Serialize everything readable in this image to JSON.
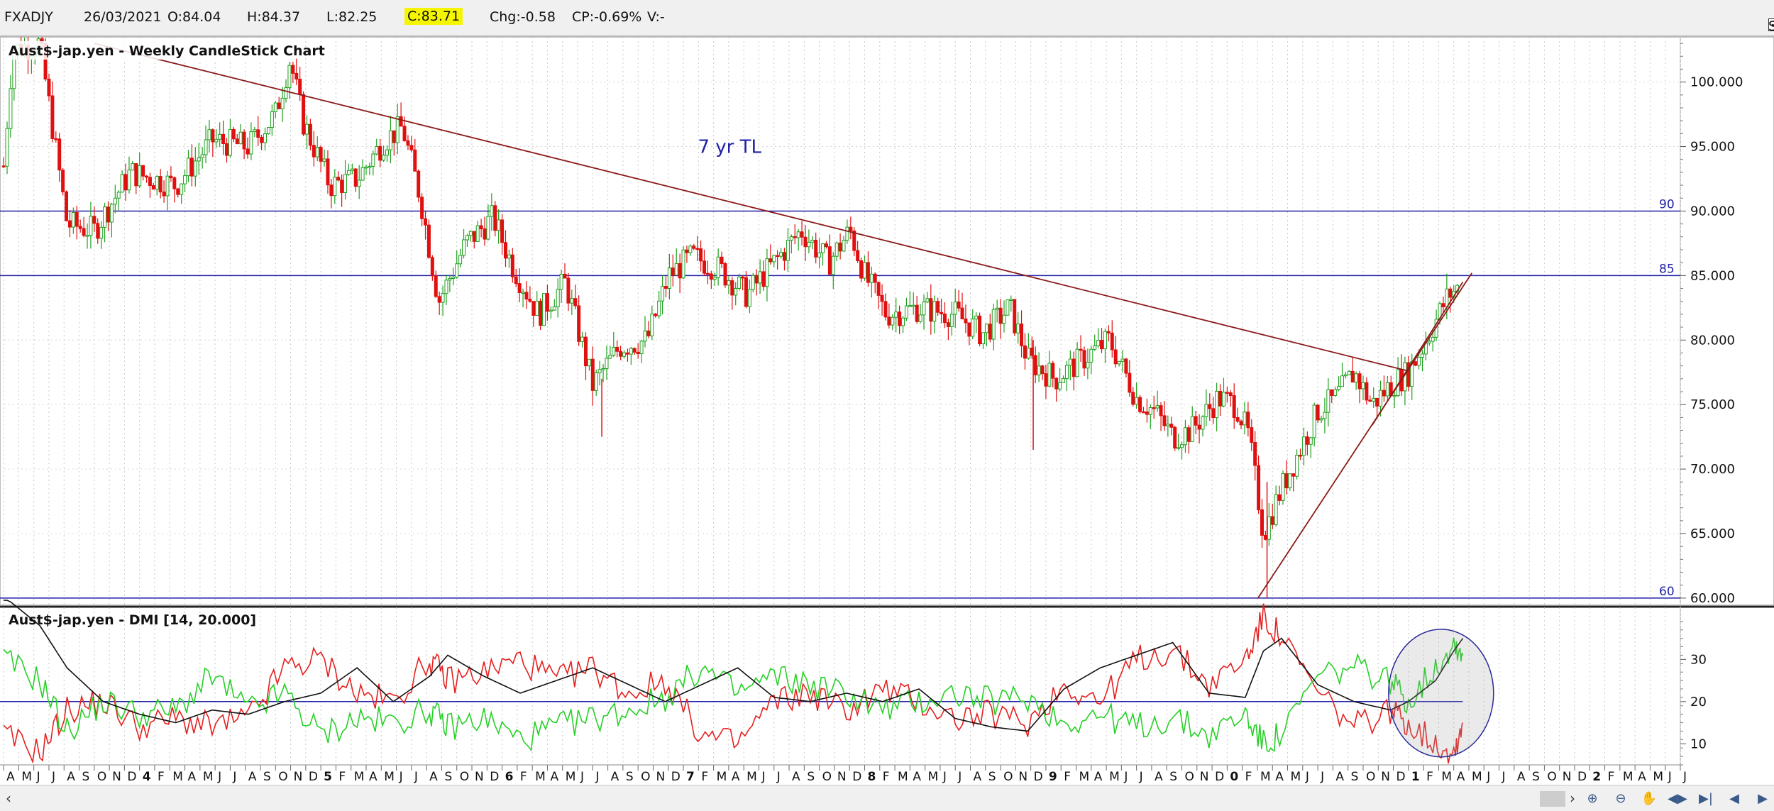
{
  "header": {
    "symbol": "FXADJY",
    "date": "26/03/2021",
    "open": "O:84.04",
    "high": "H:84.37",
    "low": "L:82.25",
    "close": "C:83.71",
    "change": "Chg:-0.58",
    "change_pct": "CP:-0.69%",
    "volume": "V:-",
    "show_last_label": "Show Last",
    "show_last_checked": true
  },
  "chart_data": [
    {
      "type": "candlestick",
      "title": "Aust$-jap.yen - Weekly CandleStick Chart",
      "ylim": [
        59.5,
        103.5
      ],
      "y_ticks": [
        "100.000",
        "95.000",
        "90.000",
        "85.000",
        "80.000",
        "75.000",
        "70.000",
        "65.000",
        "60.000"
      ],
      "horizontal_lines": [
        {
          "value": 90,
          "label": "90"
        },
        {
          "value": 85,
          "label": "85"
        },
        {
          "value": 60,
          "label": "60"
        }
      ],
      "annotation": "7 yr TL",
      "trend_lines": [
        {
          "from": [
            2013.75,
            103.0
          ],
          "to": [
            2021.0,
            77.6
          ]
        },
        {
          "from": [
            2020.17,
            60.0
          ],
          "to": [
            2021.35,
            85.2
          ]
        },
        {
          "from": [
            2020.8,
            73.4
          ],
          "to": [
            2021.3,
            84.5
          ]
        }
      ],
      "key_points": [
        [
          2013.25,
          93.5
        ],
        [
          2013.3,
          102.5
        ],
        [
          2013.45,
          103.0
        ],
        [
          2013.6,
          89.0
        ],
        [
          2013.75,
          88.5
        ],
        [
          2013.95,
          93.0
        ],
        [
          2014.2,
          92.0
        ],
        [
          2014.4,
          95.5
        ],
        [
          2014.6,
          95.0
        ],
        [
          2014.75,
          97.5
        ],
        [
          2014.83,
          101.8
        ],
        [
          2014.9,
          97.0
        ],
        [
          2015.05,
          92.0
        ],
        [
          2015.2,
          92.5
        ],
        [
          2015.35,
          95.5
        ],
        [
          2015.45,
          96.5
        ],
        [
          2015.55,
          91.0
        ],
        [
          2015.65,
          83.0
        ],
        [
          2015.8,
          87.5
        ],
        [
          2015.95,
          89.5
        ],
        [
          2016.05,
          86.0
        ],
        [
          2016.2,
          82.0
        ],
        [
          2016.35,
          84.5
        ],
        [
          2016.5,
          76.5
        ],
        [
          2016.65,
          79.5
        ],
        [
          2016.8,
          80.0
        ],
        [
          2016.92,
          85.0
        ],
        [
          2017.05,
          86.5
        ],
        [
          2017.2,
          85.5
        ],
        [
          2017.35,
          83.5
        ],
        [
          2017.5,
          86.0
        ],
        [
          2017.65,
          88.5
        ],
        [
          2017.8,
          86.0
        ],
        [
          2017.92,
          88.5
        ],
        [
          2018.0,
          85.0
        ],
        [
          2018.12,
          82.0
        ],
        [
          2018.3,
          82.5
        ],
        [
          2018.5,
          82.0
        ],
        [
          2018.65,
          80.5
        ],
        [
          2018.8,
          82.5
        ],
        [
          2018.9,
          78.5
        ],
        [
          2019.05,
          77.0
        ],
        [
          2019.2,
          78.5
        ],
        [
          2019.35,
          80.0
        ],
        [
          2019.5,
          75.5
        ],
        [
          2019.6,
          74.5
        ],
        [
          2019.7,
          72.5
        ],
        [
          2019.8,
          73.0
        ],
        [
          2019.95,
          75.5
        ],
        [
          2020.05,
          75.0
        ],
        [
          2020.12,
          72.5
        ],
        [
          2020.2,
          65.0
        ],
        [
          2020.3,
          68.5
        ],
        [
          2020.4,
          71.5
        ],
        [
          2020.5,
          74.5
        ],
        [
          2020.6,
          75.5
        ],
        [
          2020.7,
          77.5
        ],
        [
          2020.8,
          75.0
        ],
        [
          2020.9,
          76.5
        ],
        [
          2021.0,
          77.5
        ],
        [
          2021.08,
          79.5
        ],
        [
          2021.15,
          81.5
        ],
        [
          2021.22,
          83.5
        ],
        [
          2021.27,
          84.0
        ]
      ],
      "x_axis": {
        "year_markers": [
          "4",
          "5",
          "6",
          "7",
          "8",
          "9",
          "0",
          "1",
          "2"
        ],
        "month_labels": [
          "A",
          "M",
          "J",
          "J",
          "A",
          "S",
          "O",
          "N",
          "D",
          "J",
          "F",
          "M"
        ]
      }
    },
    {
      "type": "line",
      "title": "Aust$-jap.yen - DMI [14, 20.000]",
      "ylim": [
        5,
        42
      ],
      "y_ticks": [
        "30",
        "20",
        "10"
      ],
      "horizontal_lines": [
        {
          "value": 20
        }
      ],
      "series": [
        {
          "name": "",
          "color": "#e52020",
          "points": [
            [
              2013.25,
              12
            ],
            [
              2013.45,
              8
            ],
            [
              2013.6,
              18
            ],
            [
              2013.8,
              20
            ],
            [
              2014.0,
              14
            ],
            [
              2014.2,
              16
            ],
            [
              2014.4,
              14
            ],
            [
              2014.6,
              16
            ],
            [
              2014.8,
              28
            ],
            [
              2015.0,
              30
            ],
            [
              2015.2,
              22
            ],
            [
              2015.4,
              20
            ],
            [
              2015.6,
              30
            ],
            [
              2015.7,
              25
            ],
            [
              2015.9,
              27
            ],
            [
              2016.1,
              30
            ],
            [
              2016.3,
              25
            ],
            [
              2016.5,
              28
            ],
            [
              2016.7,
              22
            ],
            [
              2016.9,
              25
            ],
            [
              2017.1,
              12
            ],
            [
              2017.3,
              10
            ],
            [
              2017.5,
              20
            ],
            [
              2017.7,
              22
            ],
            [
              2017.9,
              18
            ],
            [
              2018.1,
              23
            ],
            [
              2018.3,
              20
            ],
            [
              2018.5,
              16
            ],
            [
              2018.7,
              17
            ],
            [
              2018.9,
              15
            ],
            [
              2019.1,
              24
            ],
            [
              2019.3,
              20
            ],
            [
              2019.5,
              30
            ],
            [
              2019.7,
              32
            ],
            [
              2019.9,
              24
            ],
            [
              2020.1,
              30
            ],
            [
              2020.2,
              40
            ],
            [
              2020.3,
              35
            ],
            [
              2020.5,
              22
            ],
            [
              2020.7,
              14
            ],
            [
              2020.9,
              18
            ],
            [
              2021.0,
              15
            ],
            [
              2021.15,
              10
            ],
            [
              2021.25,
              8
            ],
            [
              2021.3,
              15
            ]
          ]
        },
        {
          "name": "",
          "color": "#27d027",
          "points": [
            [
              2013.25,
              30
            ],
            [
              2013.45,
              25
            ],
            [
              2013.6,
              13
            ],
            [
              2013.8,
              20
            ],
            [
              2014.0,
              17
            ],
            [
              2014.2,
              18
            ],
            [
              2014.4,
              26
            ],
            [
              2014.6,
              18
            ],
            [
              2014.8,
              22
            ],
            [
              2015.0,
              12
            ],
            [
              2015.2,
              16
            ],
            [
              2015.4,
              15
            ],
            [
              2015.6,
              18
            ],
            [
              2015.7,
              14
            ],
            [
              2015.9,
              16
            ],
            [
              2016.1,
              11
            ],
            [
              2016.3,
              14
            ],
            [
              2016.5,
              16
            ],
            [
              2016.7,
              18
            ],
            [
              2016.9,
              21
            ],
            [
              2017.1,
              28
            ],
            [
              2017.3,
              22
            ],
            [
              2017.5,
              26
            ],
            [
              2017.7,
              24
            ],
            [
              2017.9,
              22
            ],
            [
              2018.1,
              18
            ],
            [
              2018.3,
              20
            ],
            [
              2018.5,
              22
            ],
            [
              2018.7,
              20
            ],
            [
              2018.9,
              21
            ],
            [
              2019.1,
              15
            ],
            [
              2019.3,
              17
            ],
            [
              2019.5,
              14
            ],
            [
              2019.7,
              16
            ],
            [
              2019.9,
              12
            ],
            [
              2020.1,
              17
            ],
            [
              2020.2,
              10
            ],
            [
              2020.3,
              12
            ],
            [
              2020.5,
              26
            ],
            [
              2020.7,
              28
            ],
            [
              2020.9,
              25
            ],
            [
              2021.0,
              20
            ],
            [
              2021.15,
              28
            ],
            [
              2021.25,
              34
            ],
            [
              2021.3,
              31
            ]
          ]
        },
        {
          "name": "",
          "color": "#111111",
          "points": [
            [
              2013.25,
              45
            ],
            [
              2013.45,
              38
            ],
            [
              2013.6,
              28
            ],
            [
              2013.8,
              20
            ],
            [
              2014.0,
              17
            ],
            [
              2014.2,
              15
            ],
            [
              2014.4,
              18
            ],
            [
              2014.6,
              17
            ],
            [
              2014.8,
              20
            ],
            [
              2015.0,
              22
            ],
            [
              2015.2,
              28
            ],
            [
              2015.4,
              20
            ],
            [
              2015.6,
              26
            ],
            [
              2015.7,
              31
            ],
            [
              2015.9,
              26
            ],
            [
              2016.1,
              22
            ],
            [
              2016.3,
              25
            ],
            [
              2016.5,
              28
            ],
            [
              2016.7,
              24
            ],
            [
              2016.9,
              20
            ],
            [
              2017.1,
              24
            ],
            [
              2017.3,
              28
            ],
            [
              2017.5,
              21
            ],
            [
              2017.7,
              20
            ],
            [
              2017.9,
              22
            ],
            [
              2018.1,
              20
            ],
            [
              2018.3,
              23
            ],
            [
              2018.5,
              16
            ],
            [
              2018.7,
              14
            ],
            [
              2018.9,
              13
            ],
            [
              2019.1,
              23
            ],
            [
              2019.3,
              28
            ],
            [
              2019.5,
              31
            ],
            [
              2019.7,
              34
            ],
            [
              2019.9,
              22
            ],
            [
              2020.1,
              21
            ],
            [
              2020.2,
              32
            ],
            [
              2020.3,
              35
            ],
            [
              2020.5,
              24
            ],
            [
              2020.7,
              20
            ],
            [
              2020.9,
              18
            ],
            [
              2021.0,
              20
            ],
            [
              2021.15,
              25
            ],
            [
              2021.25,
              32
            ],
            [
              2021.3,
              35
            ]
          ]
        }
      ]
    }
  ]
}
